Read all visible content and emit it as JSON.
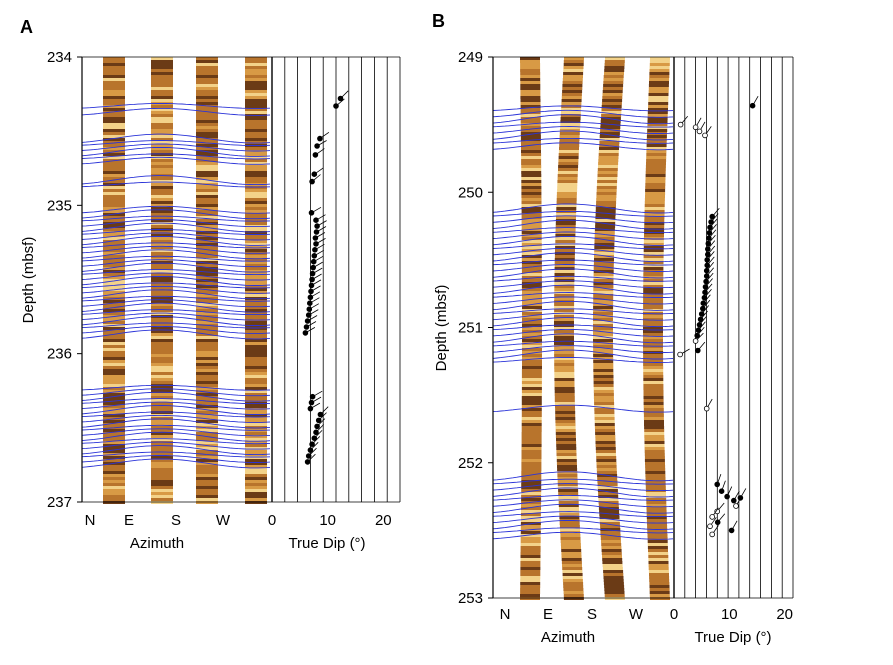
{
  "chart_data": [
    {
      "type": "scatter",
      "panel_label": "A",
      "ylabel": "Depth (mbsf)",
      "azimuth_label": "Azimuth",
      "azimuth_ticks": [
        "N",
        "E",
        "S",
        "W"
      ],
      "xlabel": "True Dip (°)",
      "xlim": [
        0,
        23
      ],
      "xticks": [
        "0",
        "10",
        "20"
      ],
      "ylim": [
        234,
        237
      ],
      "yticks": [
        "234",
        "235",
        "236",
        "237"
      ],
      "sinusoid_depths": [
        234.33,
        234.37,
        234.55,
        234.58,
        234.61,
        234.64,
        234.67,
        234.7,
        234.83,
        234.86,
        235.03,
        235.06,
        235.09,
        235.12,
        235.15,
        235.18,
        235.21,
        235.24,
        235.27,
        235.3,
        235.33,
        235.36,
        235.39,
        235.42,
        235.45,
        235.48,
        235.51,
        235.54,
        235.57,
        235.6,
        235.63,
        235.66,
        235.69,
        235.72,
        235.75,
        235.78,
        235.81,
        235.84,
        235.87,
        236.23,
        236.26,
        236.29,
        236.32,
        236.35,
        236.38,
        236.41,
        236.44,
        236.47,
        236.5,
        236.53,
        236.56,
        236.59,
        236.62,
        236.65,
        236.68,
        236.71,
        236.74
      ],
      "dip_points": [
        {
          "depth": 234.33,
          "dip": 11.5,
          "dir": 50
        },
        {
          "depth": 234.28,
          "dip": 12.3,
          "dir": 45
        },
        {
          "depth": 234.55,
          "dip": 8.6,
          "dir": 55
        },
        {
          "depth": 234.6,
          "dip": 8.1,
          "dir": 60
        },
        {
          "depth": 234.66,
          "dip": 7.8,
          "dir": 55
        },
        {
          "depth": 234.84,
          "dip": 7.2,
          "dir": 50
        },
        {
          "depth": 234.79,
          "dip": 7.6,
          "dir": 55
        },
        {
          "depth": 235.05,
          "dip": 7.1,
          "dir": 60
        },
        {
          "depth": 235.1,
          "dip": 7.9,
          "dir": 60
        },
        {
          "depth": 235.14,
          "dip": 8.1,
          "dir": 60
        },
        {
          "depth": 235.18,
          "dip": 8.0,
          "dir": 60
        },
        {
          "depth": 235.22,
          "dip": 7.8,
          "dir": 60
        },
        {
          "depth": 235.26,
          "dip": 7.9,
          "dir": 60
        },
        {
          "depth": 235.3,
          "dip": 7.7,
          "dir": 60
        },
        {
          "depth": 235.34,
          "dip": 7.6,
          "dir": 60
        },
        {
          "depth": 235.38,
          "dip": 7.5,
          "dir": 60
        },
        {
          "depth": 235.42,
          "dip": 7.4,
          "dir": 60
        },
        {
          "depth": 235.46,
          "dip": 7.3,
          "dir": 60
        },
        {
          "depth": 235.5,
          "dip": 7.2,
          "dir": 60
        },
        {
          "depth": 235.54,
          "dip": 7.1,
          "dir": 60
        },
        {
          "depth": 235.58,
          "dip": 7.0,
          "dir": 60
        },
        {
          "depth": 235.62,
          "dip": 6.9,
          "dir": 60
        },
        {
          "depth": 235.66,
          "dip": 6.8,
          "dir": 60
        },
        {
          "depth": 235.7,
          "dip": 6.7,
          "dir": 60
        },
        {
          "depth": 235.74,
          "dip": 6.6,
          "dir": 60
        },
        {
          "depth": 235.78,
          "dip": 6.4,
          "dir": 60
        },
        {
          "depth": 235.82,
          "dip": 6.2,
          "dir": 60
        },
        {
          "depth": 235.86,
          "dip": 6.0,
          "dir": 60
        },
        {
          "depth": 236.29,
          "dip": 7.3,
          "dir": 60
        },
        {
          "depth": 236.33,
          "dip": 7.1,
          "dir": 60
        },
        {
          "depth": 236.37,
          "dip": 6.9,
          "dir": 60
        },
        {
          "depth": 236.41,
          "dip": 8.7,
          "dir": 45
        },
        {
          "depth": 236.45,
          "dip": 8.4,
          "dir": 45
        },
        {
          "depth": 236.49,
          "dip": 8.1,
          "dir": 45
        },
        {
          "depth": 236.53,
          "dip": 7.9,
          "dir": 45
        },
        {
          "depth": 236.57,
          "dip": 7.6,
          "dir": 45
        },
        {
          "depth": 236.61,
          "dip": 7.2,
          "dir": 45
        },
        {
          "depth": 236.65,
          "dip": 6.9,
          "dir": 45
        },
        {
          "depth": 236.69,
          "dip": 6.6,
          "dir": 45
        },
        {
          "depth": 236.73,
          "dip": 6.4,
          "dir": 45
        }
      ]
    },
    {
      "type": "scatter",
      "panel_label": "B",
      "ylabel": "Depth (mbsf)",
      "azimuth_label": "Azimuth",
      "azimuth_ticks": [
        "N",
        "E",
        "S",
        "W"
      ],
      "xlabel": "True Dip (°)",
      "xlim": [
        0,
        21.5
      ],
      "xticks": [
        "0",
        "10",
        "20"
      ],
      "ylim": [
        249,
        253
      ],
      "yticks": [
        "249",
        "250",
        "251",
        "252",
        "253"
      ],
      "sinusoid_depths": [
        249.38,
        249.42,
        249.46,
        249.5,
        249.54,
        249.58,
        249.62,
        249.66,
        250.12,
        250.16,
        250.2,
        250.24,
        250.28,
        250.32,
        250.36,
        250.4,
        250.44,
        250.48,
        250.52,
        250.56,
        250.6,
        250.64,
        250.68,
        250.72,
        250.76,
        250.8,
        250.84,
        250.88,
        250.92,
        250.96,
        251.0,
        251.04,
        251.08,
        251.12,
        251.16,
        251.2,
        251.24,
        251.6,
        252.1,
        252.14,
        252.18,
        252.22,
        252.26,
        252.3,
        252.34,
        252.38,
        252.42,
        252.46,
        252.5,
        252.54
      ],
      "dip_points": [
        {
          "depth": 249.36,
          "dip": 14.2,
          "dir": 30,
          "open": false
        },
        {
          "depth": 249.5,
          "dip": 1.2,
          "dir": 40,
          "open": true
        },
        {
          "depth": 249.52,
          "dip": 3.9,
          "dir": 30,
          "open": true
        },
        {
          "depth": 249.55,
          "dip": 4.6,
          "dir": 30,
          "open": true
        },
        {
          "depth": 249.58,
          "dip": 5.6,
          "dir": 35,
          "open": true
        },
        {
          "depth": 250.18,
          "dip": 6.9,
          "dir": 40,
          "open": false
        },
        {
          "depth": 250.22,
          "dip": 6.7,
          "dir": 40,
          "open": false
        },
        {
          "depth": 250.26,
          "dip": 6.5,
          "dir": 40,
          "open": false
        },
        {
          "depth": 250.3,
          "dip": 6.4,
          "dir": 40,
          "open": false
        },
        {
          "depth": 250.34,
          "dip": 6.3,
          "dir": 40,
          "open": false
        },
        {
          "depth": 250.38,
          "dip": 6.2,
          "dir": 40,
          "open": false
        },
        {
          "depth": 250.42,
          "dip": 6.1,
          "dir": 40,
          "open": false
        },
        {
          "depth": 250.46,
          "dip": 6.1,
          "dir": 40,
          "open": false
        },
        {
          "depth": 250.5,
          "dip": 6.0,
          "dir": 40,
          "open": false
        },
        {
          "depth": 250.54,
          "dip": 6.0,
          "dir": 40,
          "open": false
        },
        {
          "depth": 250.58,
          "dip": 5.9,
          "dir": 40,
          "open": false
        },
        {
          "depth": 250.62,
          "dip": 5.9,
          "dir": 40,
          "open": false
        },
        {
          "depth": 250.66,
          "dip": 5.8,
          "dir": 40,
          "open": false
        },
        {
          "depth": 250.7,
          "dip": 5.7,
          "dir": 40,
          "open": false
        },
        {
          "depth": 250.74,
          "dip": 5.6,
          "dir": 40,
          "open": false
        },
        {
          "depth": 250.78,
          "dip": 5.5,
          "dir": 40,
          "open": false
        },
        {
          "depth": 250.82,
          "dip": 5.3,
          "dir": 40,
          "open": false
        },
        {
          "depth": 250.86,
          "dip": 5.2,
          "dir": 40,
          "open": false
        },
        {
          "depth": 250.9,
          "dip": 5.0,
          "dir": 40,
          "open": false
        },
        {
          "depth": 250.94,
          "dip": 4.8,
          "dir": 40,
          "open": false
        },
        {
          "depth": 250.98,
          "dip": 4.6,
          "dir": 40,
          "open": false
        },
        {
          "depth": 251.02,
          "dip": 4.4,
          "dir": 40,
          "open": false
        },
        {
          "depth": 251.06,
          "dip": 4.2,
          "dir": 40,
          "open": false
        },
        {
          "depth": 251.1,
          "dip": 3.9,
          "dir": 45,
          "open": true
        },
        {
          "depth": 251.17,
          "dip": 4.3,
          "dir": 40,
          "open": false
        },
        {
          "depth": 251.2,
          "dip": 1.1,
          "dir": 60,
          "open": true
        },
        {
          "depth": 251.6,
          "dip": 5.9,
          "dir": 30,
          "open": true
        },
        {
          "depth": 252.16,
          "dip": 7.8,
          "dir": 20,
          "open": false
        },
        {
          "depth": 252.21,
          "dip": 8.6,
          "dir": 20,
          "open": false
        },
        {
          "depth": 252.25,
          "dip": 9.6,
          "dir": 25,
          "open": false
        },
        {
          "depth": 252.28,
          "dip": 10.8,
          "dir": 30,
          "open": false
        },
        {
          "depth": 252.26,
          "dip": 12.0,
          "dir": 30,
          "open": false
        },
        {
          "depth": 252.32,
          "dip": 11.2,
          "dir": 30,
          "open": true
        },
        {
          "depth": 252.36,
          "dip": 7.8,
          "dir": 40,
          "open": true
        },
        {
          "depth": 252.4,
          "dip": 6.9,
          "dir": 35,
          "open": true
        },
        {
          "depth": 252.44,
          "dip": 7.9,
          "dir": 40,
          "open": false
        },
        {
          "depth": 252.47,
          "dip": 6.5,
          "dir": 35,
          "open": true
        },
        {
          "depth": 252.5,
          "dip": 10.4,
          "dir": 30,
          "open": false
        },
        {
          "depth": 252.53,
          "dip": 6.9,
          "dir": 35,
          "open": true
        }
      ]
    }
  ],
  "colors": {
    "track_dark": "#6b3b16",
    "track_mid": "#b8742c",
    "track_light": "#f3d289",
    "sinusoid": "#2b34d8",
    "grid": "#000000"
  }
}
